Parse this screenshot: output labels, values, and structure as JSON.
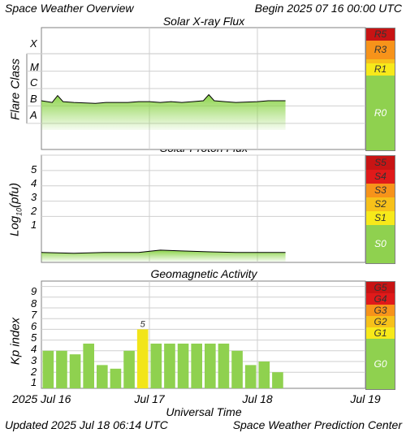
{
  "header": {
    "title": "Space Weather Overview",
    "begin": "Begin 2025 07 16 00:00 UTC"
  },
  "footer": {
    "updated": "Updated 2025 Jul 18 06:14 UTC",
    "center": "Space Weather Prediction Center"
  },
  "xaxis": {
    "title": "Universal Time",
    "ticks": [
      "2025 Jul 16",
      "Jul 17",
      "Jul 18",
      "Jul 19"
    ],
    "range_days": [
      0,
      3
    ]
  },
  "colors": {
    "grid": "#cfcfcf",
    "flux_fill": "#8cd44a",
    "flux_line": "#000000",
    "bar_green": "#8fd14f",
    "bar_yellow": "#f2e51a",
    "scale_green": "#8fd14f",
    "scale_yellow": "#f7e91a",
    "scale_gold": "#f7c11a",
    "scale_orange": "#f7931a",
    "scale_orange_red": "#f7561a",
    "scale_red": "#e01a1a",
    "scale_dark_red": "#c81414"
  },
  "panels": {
    "xray": {
      "title": "Solar X-ray Flux",
      "ylabel": "Flare Class",
      "classes": [
        "X",
        "M",
        "C",
        "B",
        "A"
      ],
      "scale": [
        {
          "label": "R5",
          "color": "#c81414",
          "text_color": "#333333"
        },
        {
          "label": "R3",
          "color": "#f7931a",
          "text_color": "#333333"
        },
        {
          "label": "",
          "color": "#f7c11a"
        },
        {
          "label": "R1",
          "color": "#f7e91a",
          "text_color": "#333333"
        },
        {
          "label": "R0",
          "color": "#8fd14f",
          "text_color": "#ffffff"
        }
      ]
    },
    "proton": {
      "title": "Solar Proton Flux",
      "ylabel_main": "Log",
      "ylabel_sub": "10",
      "ylabel_tail": "(pfu)",
      "ticks": [
        "5",
        "4",
        "3",
        "2",
        "1"
      ],
      "scale": [
        {
          "label": "S5",
          "color": "#c81414",
          "text_color": "#333333"
        },
        {
          "label": "S4",
          "color": "#e01a1a",
          "text_color": "#333333"
        },
        {
          "label": "S3",
          "color": "#f7931a",
          "text_color": "#333333"
        },
        {
          "label": "S2",
          "color": "#f7c11a",
          "text_color": "#333333"
        },
        {
          "label": "S1",
          "color": "#f7e91a",
          "text_color": "#333333"
        },
        {
          "label": "S0",
          "color": "#8fd14f",
          "text_color": "#ffffff"
        }
      ]
    },
    "geomag": {
      "title": "Geomagnetic Activity",
      "ylabel": "Kp index",
      "ticks": [
        "9",
        "8",
        "7",
        "6",
        "5",
        "4",
        "3",
        "2",
        "1"
      ],
      "scale": [
        {
          "label": "G5",
          "color": "#c81414",
          "text_color": "#333333"
        },
        {
          "label": "G4",
          "color": "#e01a1a",
          "text_color": "#333333"
        },
        {
          "label": "G3",
          "color": "#f7931a",
          "text_color": "#333333"
        },
        {
          "label": "G2",
          "color": "#f7c11a",
          "text_color": "#333333"
        },
        {
          "label": "G1",
          "color": "#f7e91a",
          "text_color": "#333333"
        },
        {
          "label": "G0",
          "color": "#8fd14f",
          "text_color": "#ffffff"
        }
      ]
    }
  },
  "chart_data": [
    {
      "type": "area",
      "title": "Solar X-ray Flux",
      "ylabel": "Flare Class",
      "xlabel": "Universal Time",
      "x_days": [
        0,
        0.1,
        0.15,
        0.2,
        0.3,
        0.5,
        0.6,
        0.8,
        0.9,
        1.0,
        1.1,
        1.2,
        1.3,
        1.4,
        1.5,
        1.55,
        1.6,
        1.7,
        1.8,
        2.0,
        2.1,
        2.2,
        2.26
      ],
      "log10_flux": [
        -6.2,
        -6.3,
        -5.9,
        -6.25,
        -6.3,
        -6.35,
        -6.3,
        -6.3,
        -6.25,
        -6.25,
        -6.3,
        -6.25,
        -6.3,
        -6.25,
        -6.2,
        -5.85,
        -6.2,
        -6.25,
        -6.3,
        -6.25,
        -6.2,
        -6.2,
        -6.2
      ],
      "flare_class_bands": {
        "A": -8,
        "B": -7,
        "C": -6,
        "M": -5,
        "X": -4
      },
      "ylim": [
        -9,
        -2
      ]
    },
    {
      "type": "area",
      "title": "Solar Proton Flux",
      "ylabel": "Log10(pfu)",
      "xlabel": "Universal Time",
      "x_days": [
        0,
        0.3,
        0.6,
        0.9,
        1.1,
        1.3,
        1.5,
        1.8,
        2.0,
        2.26
      ],
      "log10_pfu": [
        -0.85,
        -0.9,
        -0.85,
        -0.85,
        -0.7,
        -0.75,
        -0.8,
        -0.85,
        -0.85,
        -0.85
      ],
      "ylim": [
        -1.5,
        5.5
      ]
    },
    {
      "type": "bar",
      "title": "Geomagnetic Activity",
      "ylabel": "Kp index",
      "xlabel": "Universal Time",
      "bar_width_days": 0.125,
      "x_start_days": [
        0,
        0.125,
        0.25,
        0.375,
        0.5,
        0.625,
        0.75,
        0.875,
        1.0,
        1.125,
        1.25,
        1.375,
        1.5,
        1.625,
        1.75,
        1.875,
        2.0,
        2.125
      ],
      "kp": [
        3.0,
        3.0,
        2.67,
        3.67,
        1.67,
        1.33,
        3.0,
        5.0,
        3.67,
        3.67,
        3.67,
        3.67,
        3.67,
        3.67,
        3.0,
        1.67,
        2.0,
        1.0
      ],
      "highlight_label": "5",
      "ylim": [
        0,
        10
      ]
    }
  ]
}
